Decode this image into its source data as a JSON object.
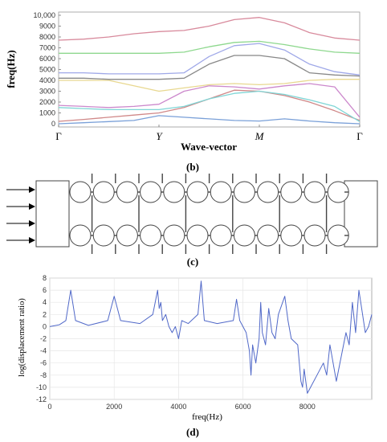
{
  "panels": {
    "b": "(b)",
    "c": "(c)",
    "d": "(d)"
  },
  "chart_data": [
    {
      "type": "line",
      "panel": "(b)",
      "xlabel": "Wave-vector",
      "ylabel": "freq(Hz)",
      "x_ticks": [
        "Γ",
        "Y",
        "M",
        "Γ"
      ],
      "x": [
        0,
        0.25,
        0.5,
        0.75,
        1.0,
        1.25,
        1.5,
        1.75,
        2.0,
        2.25,
        2.5,
        2.75,
        3.0
      ],
      "ylim": [
        0,
        10000
      ],
      "y_ticks": [
        "0",
        "1000",
        "2000",
        "3000",
        "4000",
        "5000",
        "6000",
        "7000",
        "8000",
        "9000",
        "10,000"
      ],
      "series": [
        {
          "color": "#7aa0d8",
          "values": [
            0,
            100,
            200,
            300,
            750,
            600,
            450,
            300,
            250,
            450,
            250,
            100,
            0
          ]
        },
        {
          "color": "#d08888",
          "values": [
            220,
            400,
            600,
            800,
            1000,
            1500,
            2300,
            3100,
            3000,
            2600,
            2000,
            1200,
            300
          ]
        },
        {
          "color": "#7fd6d6",
          "values": [
            1500,
            1400,
            1300,
            1300,
            1300,
            1600,
            2300,
            2800,
            3000,
            2700,
            2200,
            1600,
            200
          ]
        },
        {
          "color": "#cc88cc",
          "values": [
            1700,
            1600,
            1500,
            1600,
            1800,
            3000,
            3500,
            3400,
            3200,
            3500,
            3700,
            3400,
            600
          ]
        },
        {
          "color": "#e8d890",
          "values": [
            4000,
            4000,
            4000,
            3500,
            3000,
            3300,
            3600,
            3700,
            3600,
            3700,
            4000,
            4100,
            4100
          ]
        },
        {
          "color": "#888888",
          "values": [
            4200,
            4200,
            4100,
            4100,
            4100,
            4200,
            5500,
            6300,
            6300,
            6000,
            4700,
            4500,
            4400
          ]
        },
        {
          "color": "#9fa8e8",
          "values": [
            4700,
            4700,
            4600,
            4600,
            4600,
            4700,
            6200,
            7200,
            7400,
            6800,
            5500,
            4800,
            4500
          ]
        },
        {
          "color": "#8ed88e",
          "values": [
            6500,
            6500,
            6500,
            6500,
            6500,
            6600,
            7100,
            7500,
            7600,
            7300,
            6900,
            6600,
            6500
          ]
        },
        {
          "color": "#d88a9c",
          "values": [
            7700,
            7800,
            8000,
            8300,
            8500,
            8600,
            9000,
            9600,
            9800,
            9300,
            8400,
            7900,
            7700
          ]
        }
      ]
    },
    {
      "type": "line",
      "panel": "(d)",
      "xlabel": "freq(Hz)",
      "ylabel": "log(displacement  ratio)",
      "xlim": [
        0,
        10000
      ],
      "ylim": [
        -12,
        8
      ],
      "x_ticks": [
        "0",
        "2000",
        "4000",
        "6000",
        "8000"
      ],
      "y_ticks": [
        "-12",
        "-10",
        "-8",
        "-6",
        "-4",
        "-2",
        "0",
        "2",
        "4",
        "6",
        "8"
      ],
      "series": [
        {
          "color": "#5068c8",
          "x": [
            0,
            300,
            500,
            650,
            800,
            1200,
            1800,
            2000,
            2200,
            2800,
            3200,
            3350,
            3400,
            3450,
            3500,
            3600,
            3700,
            3800,
            3900,
            4000,
            4100,
            4300,
            4600,
            4700,
            4800,
            5200,
            5700,
            5800,
            5900,
            6100,
            6200,
            6250,
            6300,
            6400,
            6500,
            6550,
            6600,
            6700,
            6800,
            6900,
            7000,
            7100,
            7300,
            7400,
            7500,
            7700,
            7800,
            7850,
            7900,
            8000,
            8100,
            8300,
            8500,
            8600,
            8700,
            8900,
            9200,
            9300,
            9400,
            9500,
            9600,
            9800,
            9900,
            10000
          ],
          "y": [
            0,
            0.3,
            1,
            6,
            1,
            0.2,
            1,
            5,
            1,
            0.5,
            2,
            6,
            3,
            4,
            1,
            2,
            0,
            -1,
            0,
            -2,
            1,
            0.5,
            2,
            7.5,
            1,
            0.5,
            1,
            4.5,
            1,
            -1,
            -4,
            -8,
            -3,
            -6,
            -2,
            4,
            -1,
            -3,
            3,
            -1,
            -2,
            2,
            5,
            1,
            -2,
            -3,
            -9,
            -10,
            -7,
            -11,
            -10,
            -8,
            -6,
            -8,
            -3,
            -9,
            -1,
            -3,
            4,
            -1,
            6,
            -1,
            0,
            2
          ]
        }
      ]
    }
  ]
}
